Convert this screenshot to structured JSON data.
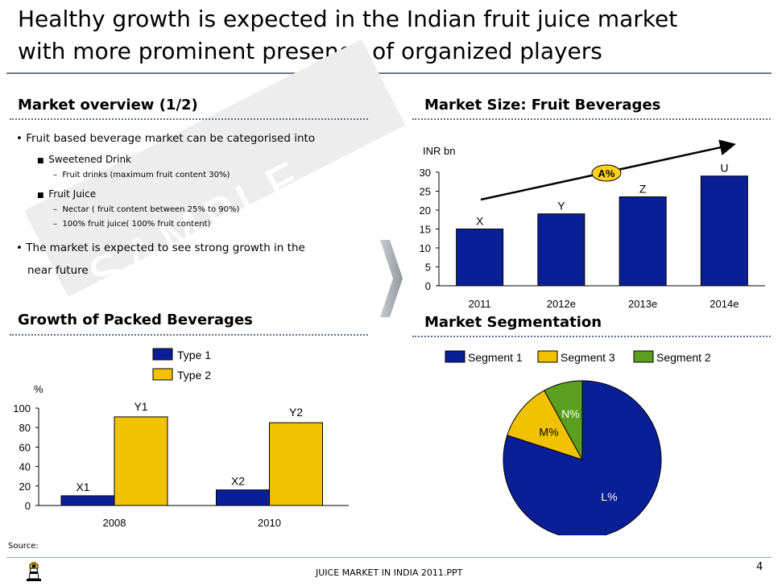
{
  "header": {
    "title_line1": "Healthy growth is expected in the Indian fruit juice market",
    "title_line2": "with more prominent presence of organized players"
  },
  "watermark": "SAMPLE",
  "overview": {
    "heading": "Market overview (1/2)",
    "bullet1": "Fruit based beverage market can be categorised into",
    "sub1": "Sweetened Drink",
    "sub1_item1": "Fruit drinks (maximum fruit content 30%)",
    "sub2": "Fruit Juice",
    "sub2_item1": "Nectar  ( fruit content between 25% to 90%)",
    "sub2_item2": "100% fruit juice( 100% fruit content)",
    "bullet2_line1": "The market is expected to see strong growth in the",
    "bullet2_line2": "near future"
  },
  "packed": {
    "heading": "Growth of Packed Beverages"
  },
  "market_size": {
    "heading": "Market Size: Fruit Beverages",
    "cagr_label": "A%"
  },
  "segmentation": {
    "heading": "Market Segmentation"
  },
  "footer": {
    "source": "Source:",
    "file": "JUICE MARKET IN INDIA 2011.PPT",
    "page": "4"
  },
  "colors": {
    "navy": "#0a1f96",
    "gold": "#f2c200",
    "green": "#5aa01e",
    "accent_yellow": "#ffd21a"
  },
  "chart_data": [
    {
      "type": "bar",
      "ylabel": "INR bn",
      "categories": [
        "2011",
        "2012e",
        "2013e",
        "2014e"
      ],
      "values": [
        15,
        19,
        23.5,
        29
      ],
      "data_labels": [
        "X",
        "Y",
        "Z",
        "U"
      ],
      "yticks": [
        0,
        5,
        10,
        15,
        20,
        25,
        30
      ],
      "ylim": [
        0,
        30
      ],
      "annotation": "A%",
      "grid": false
    },
    {
      "type": "bar",
      "ylabel": "%",
      "categories": [
        "2008",
        "2010"
      ],
      "series": [
        {
          "name": "Type 1",
          "values": [
            10,
            16
          ],
          "data_labels": [
            "X1",
            "X2"
          ]
        },
        {
          "name": "Type 2",
          "values": [
            91,
            85
          ],
          "data_labels": [
            "Y1",
            "Y2"
          ]
        }
      ],
      "yticks": [
        0,
        20,
        40,
        60,
        80,
        100
      ],
      "ylim": [
        0,
        100
      ],
      "legend": "top-center",
      "grid": false
    },
    {
      "type": "pie",
      "legend": [
        "Segment 1",
        "Segment 3",
        "Segment 2"
      ],
      "slices": [
        {
          "name": "Segment 1",
          "label": "L%",
          "value": 80
        },
        {
          "name": "Segment 3",
          "label": "M%",
          "value": 12
        },
        {
          "name": "Segment 2",
          "label": "N%",
          "value": 8
        }
      ]
    }
  ]
}
